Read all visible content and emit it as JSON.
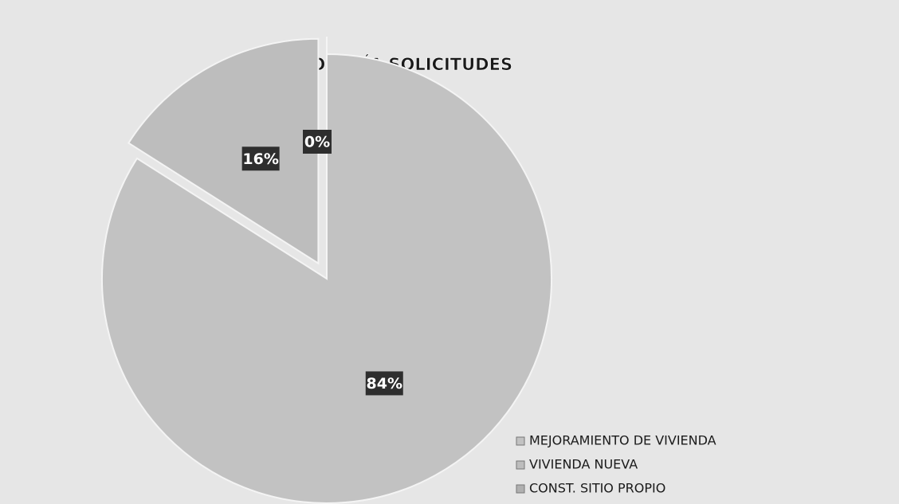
{
  "chart_data": {
    "type": "pie",
    "title": "TIPOLOGÍA SOLICITUDES",
    "categories": [
      "MEJORAMIENTO DE VIVIENDA",
      "VIVIENDA NUEVA",
      "CONST. SITIO PROPIO"
    ],
    "values": [
      84,
      16,
      0
    ],
    "value_labels": [
      "84%",
      "16%",
      "0%"
    ],
    "colors": [
      "#c2c2c2",
      "#bdbdbd",
      "#b0b0b0"
    ],
    "legend": "bottom-right"
  }
}
